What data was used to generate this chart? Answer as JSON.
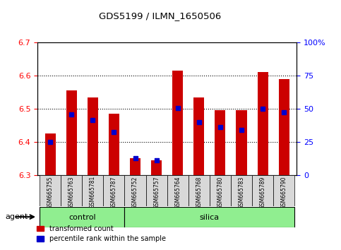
{
  "title": "GDS5199 / ILMN_1650506",
  "samples": [
    "GSM665755",
    "GSM665763",
    "GSM665781",
    "GSM665787",
    "GSM665752",
    "GSM665757",
    "GSM665764",
    "GSM665768",
    "GSM665780",
    "GSM665783",
    "GSM665789",
    "GSM665790"
  ],
  "groups": [
    "control",
    "control",
    "control",
    "control",
    "silica",
    "silica",
    "silica",
    "silica",
    "silica",
    "silica",
    "silica",
    "silica"
  ],
  "transformed_count": [
    6.425,
    6.555,
    6.535,
    6.485,
    6.35,
    6.345,
    6.615,
    6.535,
    6.495,
    6.495,
    6.61,
    6.59
  ],
  "percentile_rank": [
    6.4,
    6.483,
    6.465,
    6.43,
    6.35,
    6.345,
    6.503,
    6.46,
    6.445,
    6.435,
    6.5,
    6.49
  ],
  "ymin": 6.3,
  "ymax": 6.7,
  "yticks": [
    6.3,
    6.4,
    6.5,
    6.6,
    6.7
  ],
  "y2min": 0,
  "y2max": 100,
  "y2ticks": [
    0,
    25,
    50,
    75,
    100
  ],
  "y2tick_labels": [
    "0",
    "25",
    "50",
    "75",
    "100%"
  ],
  "bar_color": "#CC0000",
  "marker_color": "#0000CC",
  "plot_bg": "#ffffff",
  "control_color": "#90EE90",
  "silica_color": "#90EE90",
  "legend_red_label": "transformed count",
  "legend_blue_label": "percentile rank within the sample",
  "agent_label": "agent",
  "bar_width": 0.5,
  "n_control": 4,
  "n_silica": 8
}
